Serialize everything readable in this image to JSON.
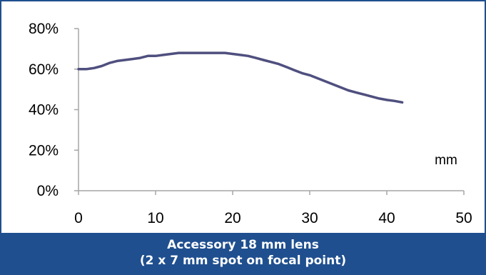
{
  "chart_data": {
    "type": "line",
    "x": [
      0,
      1,
      2,
      3,
      4,
      5,
      6,
      7,
      8,
      9,
      10,
      11,
      12,
      13,
      14,
      15,
      16,
      17,
      18,
      19,
      20,
      21,
      22,
      23,
      24,
      25,
      26,
      27,
      28,
      29,
      30,
      31,
      32,
      33,
      34,
      35,
      36,
      37,
      38,
      39,
      40,
      41,
      42
    ],
    "series": [
      {
        "values": [
          60,
          60,
          60.5,
          61.5,
          63,
          64,
          64.5,
          65,
          65.5,
          66.5,
          66.5,
          67,
          67.5,
          68,
          68,
          68,
          68,
          68,
          68,
          68,
          67.5,
          67,
          66.5,
          65.5,
          64.5,
          63.5,
          62.5,
          61,
          59.5,
          58,
          57,
          55.5,
          54,
          52.5,
          51,
          49.5,
          48.5,
          47.5,
          46.5,
          45.5,
          44.8,
          44.3,
          43.6
        ],
        "color": "#4f4f7f"
      }
    ],
    "xlim": [
      0,
      50
    ],
    "ylim": [
      0,
      80
    ],
    "xticks": [
      "0",
      "10",
      "20",
      "30",
      "40",
      "50"
    ],
    "yticks": [
      "0%",
      "20%",
      "40%",
      "60%",
      "80%"
    ],
    "xlabel": "mm",
    "grid": false
  },
  "caption": {
    "line1": "Accessory 18 mm lens",
    "line2": "(2 x 7 mm spot on focal point)"
  },
  "colors": {
    "frame": "#1f4f8f",
    "axis": "#a6a6a6",
    "text": "#000000"
  }
}
